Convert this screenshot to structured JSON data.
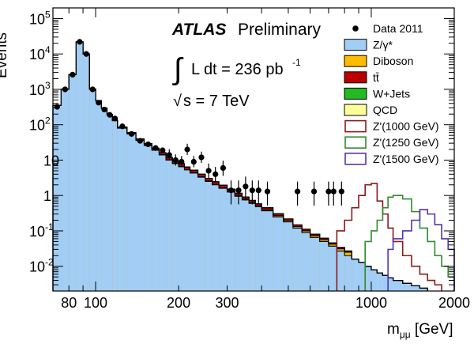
{
  "chart_data": {
    "type": "area",
    "experiment": "ATLAS",
    "experiment_status": "Preliminary",
    "luminosity_label": "L dt = 236 pb",
    "luminosity_exponent": "-1",
    "energy_label": "s = 7 TeV",
    "sqrt_symbol": "√",
    "integral_symbol": "∫",
    "xlabel": "m",
    "xlabel_sub": "μμ",
    "xlabel_unit": " [GeV]",
    "ylabel": "Events",
    "x_scale": "log",
    "y_scale": "log",
    "xlim": [
      70,
      2000
    ],
    "ylim": [
      0.002,
      200000
    ],
    "x_tick_labels": [
      {
        "value": 80,
        "label": "80"
      },
      {
        "value": 100,
        "label": "100"
      },
      {
        "value": 200,
        "label": "200"
      },
      {
        "value": 300,
        "label": "300"
      },
      {
        "value": 1000,
        "label": "1000"
      },
      {
        "value": 2000,
        "label": "2000"
      }
    ],
    "y_tick_labels": [
      {
        "value": 0.01,
        "base": "10",
        "exp": "-2"
      },
      {
        "value": 0.1,
        "base": "10",
        "exp": "-1"
      },
      {
        "value": 1,
        "base": "1",
        "exp": ""
      },
      {
        "value": 10,
        "base": "10",
        "exp": ""
      },
      {
        "value": 100,
        "base": "10",
        "exp": "2"
      },
      {
        "value": 1000,
        "base": "10",
        "exp": "3"
      },
      {
        "value": 10000,
        "base": "10",
        "exp": "4"
      },
      {
        "value": 100000,
        "base": "10",
        "exp": "5"
      }
    ],
    "bin_edges": [
      70,
      75,
      80,
      85,
      90,
      95,
      100,
      105,
      110,
      115,
      120,
      130,
      140,
      150,
      160,
      170,
      180,
      190,
      200,
      210,
      220,
      235,
      250,
      265,
      280,
      300,
      320,
      340,
      360,
      380,
      400,
      440,
      480,
      520,
      560,
      600,
      650,
      700,
      750,
      800,
      850,
      900,
      950,
      1000,
      1050,
      1100,
      1150,
      1200,
      1300,
      1400,
      1500,
      1600,
      1700,
      1800,
      1900,
      2000
    ],
    "legend_position": "top-right",
    "stack": [
      {
        "name": "Z/γ*",
        "color": "#a2cdf4",
        "values": [
          350,
          1000,
          2600,
          22000,
          10000,
          1000,
          470,
          290,
          190,
          130,
          80,
          55,
          36,
          26,
          19,
          14,
          10,
          8,
          6.5,
          5.3,
          4.3,
          3.3,
          2.5,
          2,
          1.6,
          1.25,
          0.95,
          0.75,
          0.6,
          0.48,
          0.37,
          0.25,
          0.18,
          0.12,
          0.09,
          0.065,
          0.05,
          0.037,
          0.027,
          0.02,
          0.016,
          0.013,
          0.01,
          0.008,
          0.0065,
          0.0055,
          0.0047,
          0.004,
          0.0033,
          0.0028,
          0.0024,
          0.002,
          0.0018,
          0.0016,
          0.0015
        ]
      },
      {
        "name": "Diboson",
        "color": "#ffbb00",
        "values": [
          0.5,
          0.5,
          1.0,
          3.0,
          2.0,
          0.6,
          0.4,
          0.35,
          0.3,
          0.28,
          0.25,
          0.22,
          0.2,
          0.18,
          0.16,
          0.15,
          0.13,
          0.12,
          0.11,
          0.1,
          0.09,
          0.08,
          0.07,
          0.06,
          0.055,
          0.05,
          0.045,
          0.04,
          0.035,
          0.03,
          0.027,
          0.02,
          0.015,
          0.012,
          0.01,
          0.008,
          0.006,
          0.005,
          0.004,
          0.005,
          0,
          0,
          0,
          0,
          0,
          0,
          0,
          0,
          0,
          0,
          0,
          0,
          0,
          0,
          0
        ]
      },
      {
        "name": "tt̄",
        "color": "#bb0000",
        "values": [
          6,
          6.5,
          7,
          7,
          7.5,
          7,
          7,
          6.5,
          6,
          5.5,
          5,
          4.2,
          3.6,
          3.0,
          2.5,
          2.1,
          1.7,
          1.4,
          1.15,
          0.95,
          0.8,
          0.62,
          0.48,
          0.38,
          0.3,
          0.22,
          0.16,
          0.12,
          0.09,
          0.07,
          0.055,
          0.035,
          0.022,
          0.015,
          0.011,
          0.008,
          0.006,
          0.004,
          0.003,
          0.002,
          0,
          0,
          0,
          0,
          0,
          0,
          0,
          0,
          0,
          0,
          0,
          0,
          0,
          0,
          0
        ]
      },
      {
        "name": "W+Jets",
        "color": "#22bb22",
        "values": [
          0.2,
          0.25,
          0.1,
          0.3,
          0.35,
          0,
          0.15,
          0,
          0.2,
          0,
          0.1,
          0.05,
          0,
          0.12,
          0,
          0.04,
          0,
          0.03,
          0.2,
          0.03,
          0.02,
          0.02,
          0.01,
          0.01,
          0,
          0,
          0,
          0,
          0,
          0,
          0,
          0,
          0,
          0,
          0,
          0,
          0,
          0,
          0,
          0,
          0,
          0,
          0,
          0,
          0,
          0,
          0,
          0,
          0,
          0,
          0,
          0,
          0,
          0,
          0
        ]
      },
      {
        "name": "QCD",
        "color": "#ffff99",
        "values": [
          0.03,
          0.035,
          0.025,
          0.03,
          0.02,
          0.03,
          0.04,
          0.035,
          0.02,
          0.012,
          0.015,
          0.01,
          0.008,
          0.006,
          0.006,
          0.005,
          0.004,
          0.003,
          0.003,
          0.002,
          0.002,
          0,
          0,
          0,
          0,
          0,
          0,
          0,
          0,
          0,
          0,
          0,
          0,
          0,
          0,
          0,
          0,
          0,
          0,
          0,
          0,
          0,
          0,
          0,
          0,
          0,
          0,
          0,
          0,
          0,
          0,
          0,
          0,
          0,
          0,
          0,
          0
        ]
      }
    ],
    "signals": [
      {
        "name": "Z'(1000 GeV)",
        "color": "#8b1a1a",
        "values": [
          0,
          0,
          0,
          0,
          0,
          0,
          0,
          0,
          0,
          0,
          0,
          0,
          0,
          0,
          0,
          0,
          0,
          0,
          0,
          0,
          0,
          0,
          0,
          0,
          0,
          0,
          0,
          0,
          0,
          0,
          0,
          0,
          0,
          0,
          0,
          0,
          0,
          0,
          0.1,
          0.2,
          0.45,
          1.0,
          2.0,
          2.2,
          0.7,
          0.3,
          0.12,
          0.05,
          0.02,
          0.01,
          0.006,
          0.004,
          0.003,
          0,
          0
        ]
      },
      {
        "name": "Z'(1250 GeV)",
        "color": "#2e8b2e",
        "values": [
          0,
          0,
          0,
          0,
          0,
          0,
          0,
          0,
          0,
          0,
          0,
          0,
          0,
          0,
          0,
          0,
          0,
          0,
          0,
          0,
          0,
          0,
          0,
          0,
          0,
          0,
          0,
          0,
          0,
          0,
          0,
          0,
          0,
          0,
          0,
          0,
          0,
          0,
          0,
          0,
          0,
          0,
          0.05,
          0.1,
          0.2,
          0.45,
          0.9,
          1.0,
          0.8,
          0.35,
          0.12,
          0.05,
          0.02,
          0.01,
          0.005
        ]
      },
      {
        "name": "Z'(1500 GeV)",
        "color": "#5533aa",
        "values": [
          0,
          0,
          0,
          0,
          0,
          0,
          0,
          0,
          0,
          0,
          0,
          0,
          0,
          0,
          0,
          0,
          0,
          0,
          0,
          0,
          0,
          0,
          0,
          0,
          0,
          0,
          0,
          0,
          0,
          0,
          0,
          0,
          0,
          0,
          0,
          0,
          0,
          0,
          0,
          0,
          0,
          0,
          0,
          0,
          0,
          0,
          0.03,
          0.06,
          0.1,
          0.2,
          0.4,
          0.3,
          0.15,
          0.06,
          0.03
        ]
      }
    ],
    "data": {
      "name": "Data 2011",
      "color": "#000000",
      "points": [
        {
          "x": 72.5,
          "y": 320,
          "err": 0
        },
        {
          "x": 77.5,
          "y": 1000,
          "err": 0
        },
        {
          "x": 82.5,
          "y": 2600,
          "err": 0
        },
        {
          "x": 87.5,
          "y": 22000,
          "err": 0
        },
        {
          "x": 92.5,
          "y": 10000,
          "err": 0
        },
        {
          "x": 97.5,
          "y": 1000,
          "err": 0
        },
        {
          "x": 102.5,
          "y": 420,
          "err": 0
        },
        {
          "x": 107.5,
          "y": 270,
          "err": 0
        },
        {
          "x": 112.5,
          "y": 190,
          "err": 0
        },
        {
          "x": 117.5,
          "y": 150,
          "err": 0
        },
        {
          "x": 125,
          "y": 90,
          "err": 0
        },
        {
          "x": 135,
          "y": 55,
          "err": 0
        },
        {
          "x": 145,
          "y": 35,
          "err": 0
        },
        {
          "x": 155,
          "y": 28,
          "err": 0
        },
        {
          "x": 165,
          "y": 22,
          "err": 0
        },
        {
          "x": 175,
          "y": 19,
          "err": 0
        },
        {
          "x": 185,
          "y": 14,
          "err": 0.3
        },
        {
          "x": 195,
          "y": 10,
          "err": 0.3
        },
        {
          "x": 205,
          "y": 9,
          "err": 0.3
        },
        {
          "x": 215,
          "y": 20,
          "err": 0.3
        },
        {
          "x": 227,
          "y": 9,
          "err": 0.3
        },
        {
          "x": 242,
          "y": 12,
          "err": 0.3
        },
        {
          "x": 257,
          "y": 5,
          "err": 0.4
        },
        {
          "x": 272,
          "y": 4,
          "err": 0.4
        },
        {
          "x": 290,
          "y": 6,
          "err": 0.4
        },
        {
          "x": 310,
          "y": 1.4,
          "err": 0.6
        },
        {
          "x": 330,
          "y": 1.4,
          "err": 0.6
        },
        {
          "x": 350,
          "y": 1.8,
          "err": 0.6
        },
        {
          "x": 370,
          "y": 1.4,
          "err": 0.6
        },
        {
          "x": 390,
          "y": 1.4,
          "err": 0.6
        },
        {
          "x": 420,
          "y": 1.3,
          "err": 0.6
        },
        {
          "x": 540,
          "y": 1.3,
          "err": 0.6
        },
        {
          "x": 620,
          "y": 1.3,
          "err": 0.6
        },
        {
          "x": 700,
          "y": 1.3,
          "err": 0.6
        },
        {
          "x": 730,
          "y": 1.3,
          "err": 0.6
        },
        {
          "x": 780,
          "y": 1.3,
          "err": 0.6
        }
      ]
    },
    "legend": [
      {
        "label": "Data 2011",
        "kind": "marker",
        "color": "#000000"
      },
      {
        "label": "Z/γ*",
        "kind": "fill",
        "color": "#a2cdf4"
      },
      {
        "label": "Diboson",
        "kind": "fill",
        "color": "#ffbb00"
      },
      {
        "label": "tt̄",
        "kind": "fill",
        "color": "#bb0000"
      },
      {
        "label": "W+Jets",
        "kind": "fill",
        "color": "#22bb22"
      },
      {
        "label": "QCD",
        "kind": "fill",
        "color": "#ffff99"
      },
      {
        "label": "Z'(1000 GeV)",
        "kind": "line",
        "color": "#8b1a1a"
      },
      {
        "label": "Z'(1250 GeV)",
        "kind": "line",
        "color": "#2e8b2e"
      },
      {
        "label": "Z'(1500 GeV)",
        "kind": "line",
        "color": "#5533aa"
      }
    ]
  }
}
